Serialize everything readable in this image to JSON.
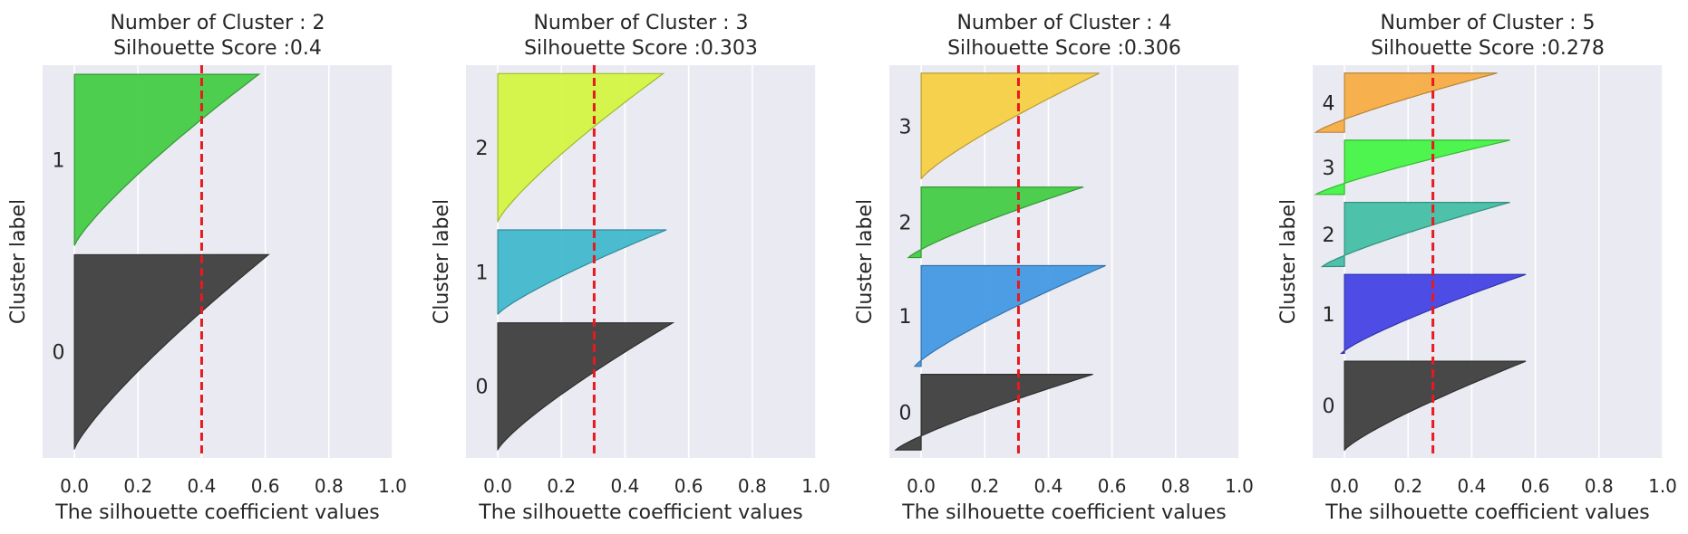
{
  "chart_data": [
    {
      "type": "area",
      "title": "Number of Cluster : 2",
      "subtitle": "Silhouette Score :0.4",
      "xlabel": "The silhouette coefficient values",
      "ylabel": "Cluster label",
      "xlim": [
        -0.1,
        1.0
      ],
      "xticks": [
        "0.0",
        "0.2",
        "0.4",
        "0.6",
        "0.8",
        "1.0"
      ],
      "grid": true,
      "silhouette_score": 0.4,
      "clusters": [
        {
          "label": "0",
          "color": "#3f3f3f",
          "size": 170,
          "min": 0.0,
          "max": 0.61
        },
        {
          "label": "1",
          "color": "#44cc44",
          "size": 150,
          "min": 0.0,
          "max": 0.58
        }
      ]
    },
    {
      "type": "area",
      "title": "Number of Cluster : 3",
      "subtitle": "Silhouette Score :0.303",
      "xlabel": "The silhouette coefficient values",
      "ylabel": "Cluster label",
      "xlim": [
        -0.1,
        1.0
      ],
      "xticks": [
        "0.0",
        "0.2",
        "0.4",
        "0.6",
        "0.8",
        "1.0"
      ],
      "grid": true,
      "silhouette_score": 0.303,
      "clusters": [
        {
          "label": "0",
          "color": "#3f3f3f",
          "size": 120,
          "min": 0.0,
          "max": 0.55
        },
        {
          "label": "1",
          "color": "#42b8cc",
          "size": 80,
          "min": 0.0,
          "max": 0.53
        },
        {
          "label": "2",
          "color": "#d4f542",
          "size": 140,
          "min": 0.0,
          "max": 0.52
        }
      ]
    },
    {
      "type": "area",
      "title": "Number of Cluster : 4",
      "subtitle": "Silhouette Score :0.306",
      "xlabel": "The silhouette coefficient values",
      "ylabel": "Cluster label",
      "xlim": [
        -0.1,
        1.0
      ],
      "xticks": [
        "0.0",
        "0.2",
        "0.4",
        "0.6",
        "0.8",
        "1.0"
      ],
      "grid": true,
      "silhouette_score": 0.306,
      "clusters": [
        {
          "label": "0",
          "color": "#3f3f3f",
          "size": 75,
          "min": -0.08,
          "max": 0.54
        },
        {
          "label": "1",
          "color": "#4499e4",
          "size": 100,
          "min": -0.02,
          "max": 0.58
        },
        {
          "label": "2",
          "color": "#44cc44",
          "size": 70,
          "min": -0.04,
          "max": 0.51
        },
        {
          "label": "3",
          "color": "#f7d045",
          "size": 105,
          "min": 0.0,
          "max": 0.56
        }
      ]
    },
    {
      "type": "area",
      "title": "Number of Cluster : 5",
      "subtitle": "Silhouette Score :0.278",
      "xlabel": "The silhouette coefficient values",
      "ylabel": "Cluster label",
      "xlim": [
        -0.1,
        1.0
      ],
      "xticks": [
        "0.0",
        "0.2",
        "0.4",
        "0.6",
        "0.8",
        "1.0"
      ],
      "grid": true,
      "silhouette_score": 0.278,
      "clusters": [
        {
          "label": "0",
          "color": "#3f3f3f",
          "size": 90,
          "min": 0.0,
          "max": 0.57
        },
        {
          "label": "1",
          "color": "#4444e4",
          "size": 80,
          "min": -0.01,
          "max": 0.57
        },
        {
          "label": "2",
          "color": "#44bfa4",
          "size": 65,
          "min": -0.07,
          "max": 0.52
        },
        {
          "label": "3",
          "color": "#44f544",
          "size": 55,
          "min": -0.09,
          "max": 0.52
        },
        {
          "label": "4",
          "color": "#f7ae45",
          "size": 60,
          "min": -0.09,
          "max": 0.48
        }
      ]
    }
  ]
}
